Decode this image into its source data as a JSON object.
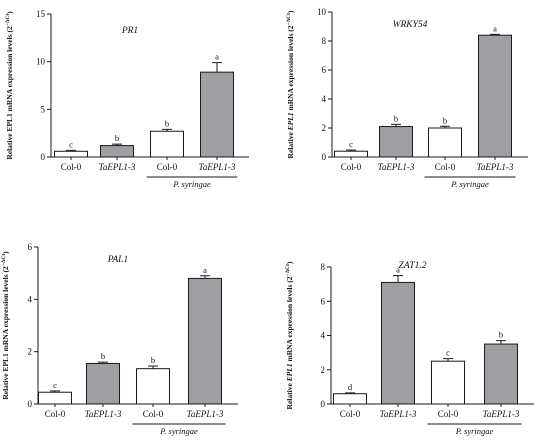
{
  "style": {
    "bar_white": "#ffffff",
    "bar_gray": "#9e9ea3",
    "stroke": "#1a1a1a"
  },
  "chart_data": [
    {
      "type": "bar",
      "title": "PR1",
      "ylabel": "Relative EPL1 mRNA expression levels (2",
      "ylabel_sup": "−ΔCt",
      "ylabel_close": ")",
      "ylabel_italic_word": false,
      "ylim": [
        0,
        15
      ],
      "yticks": [
        0,
        5,
        10,
        15
      ],
      "categories": [
        "Col-0",
        "TaEPL1-3",
        "Col-0",
        "TaEPL1-3"
      ],
      "category_italic": [
        false,
        true,
        false,
        true
      ],
      "values": [
        0.6,
        1.2,
        2.7,
        8.9
      ],
      "errors": [
        0.1,
        0.15,
        0.2,
        1.0
      ],
      "fills": [
        "white",
        "gray",
        "white",
        "gray"
      ],
      "significance": [
        "c",
        "b",
        "b",
        "a"
      ],
      "group_label": "P. syringae",
      "grid": false
    },
    {
      "type": "bar",
      "title": "WRKY54",
      "ylabel": "Relative EPL1 mRNA expression levels (2",
      "ylabel_sup": "−ΔCt",
      "ylabel_close": ")",
      "ylabel_italic_word": true,
      "ylim": [
        0,
        10
      ],
      "yticks": [
        0,
        2,
        4,
        6,
        8,
        10
      ],
      "categories": [
        "Col-0",
        "TaEPL1-3",
        "Col-0",
        "TaEPL1-3"
      ],
      "category_italic": [
        false,
        true,
        false,
        true
      ],
      "values": [
        0.4,
        2.1,
        2.0,
        8.4
      ],
      "errors": [
        0.08,
        0.15,
        0.12,
        0.06
      ],
      "fills": [
        "white",
        "gray",
        "white",
        "gray"
      ],
      "significance": [
        "c",
        "b",
        "b",
        "a"
      ],
      "group_label": "P. syringae",
      "grid": false
    },
    {
      "type": "bar",
      "title": "PAL1",
      "ylabel": "Relative EPL1 mRNA expression levels (2",
      "ylabel_sup": "−ΔCt",
      "ylabel_close": ")",
      "ylabel_italic_word": false,
      "ylim": [
        0,
        6
      ],
      "yticks": [
        0,
        2,
        4,
        6
      ],
      "categories": [
        "Col-0",
        "TaEPL1-3",
        "Col-0",
        "TaEPL1-3"
      ],
      "category_italic": [
        false,
        true,
        false,
        true
      ],
      "values": [
        0.45,
        1.55,
        1.35,
        4.8
      ],
      "errors": [
        0.05,
        0.05,
        0.1,
        0.1
      ],
      "fills": [
        "white",
        "gray",
        "white",
        "gray"
      ],
      "significance": [
        "c",
        "b",
        "b",
        "a"
      ],
      "group_label": "P. syringae",
      "grid": false
    },
    {
      "type": "bar",
      "title": "ZAT1.2",
      "ylabel": "Relative EPL1 mRNA expression levels (2",
      "ylabel_sup": "−ΔCt",
      "ylabel_close": ")",
      "ylabel_italic_word": true,
      "ylim": [
        0,
        8
      ],
      "yticks": [
        0,
        2,
        4,
        6,
        8
      ],
      "categories": [
        "Col-0",
        "TaEPL1-3",
        "Col-0",
        "TaEPL1-3"
      ],
      "category_italic": [
        false,
        true,
        false,
        true
      ],
      "values": [
        0.6,
        7.1,
        2.5,
        3.5
      ],
      "errors": [
        0.05,
        0.4,
        0.15,
        0.2
      ],
      "fills": [
        "white",
        "gray",
        "gray",
        "gray"
      ],
      "fills_note": "",
      "significance": [
        "d",
        "a",
        "c",
        "b"
      ],
      "group_label": "P. syringae",
      "grid": false
    }
  ]
}
